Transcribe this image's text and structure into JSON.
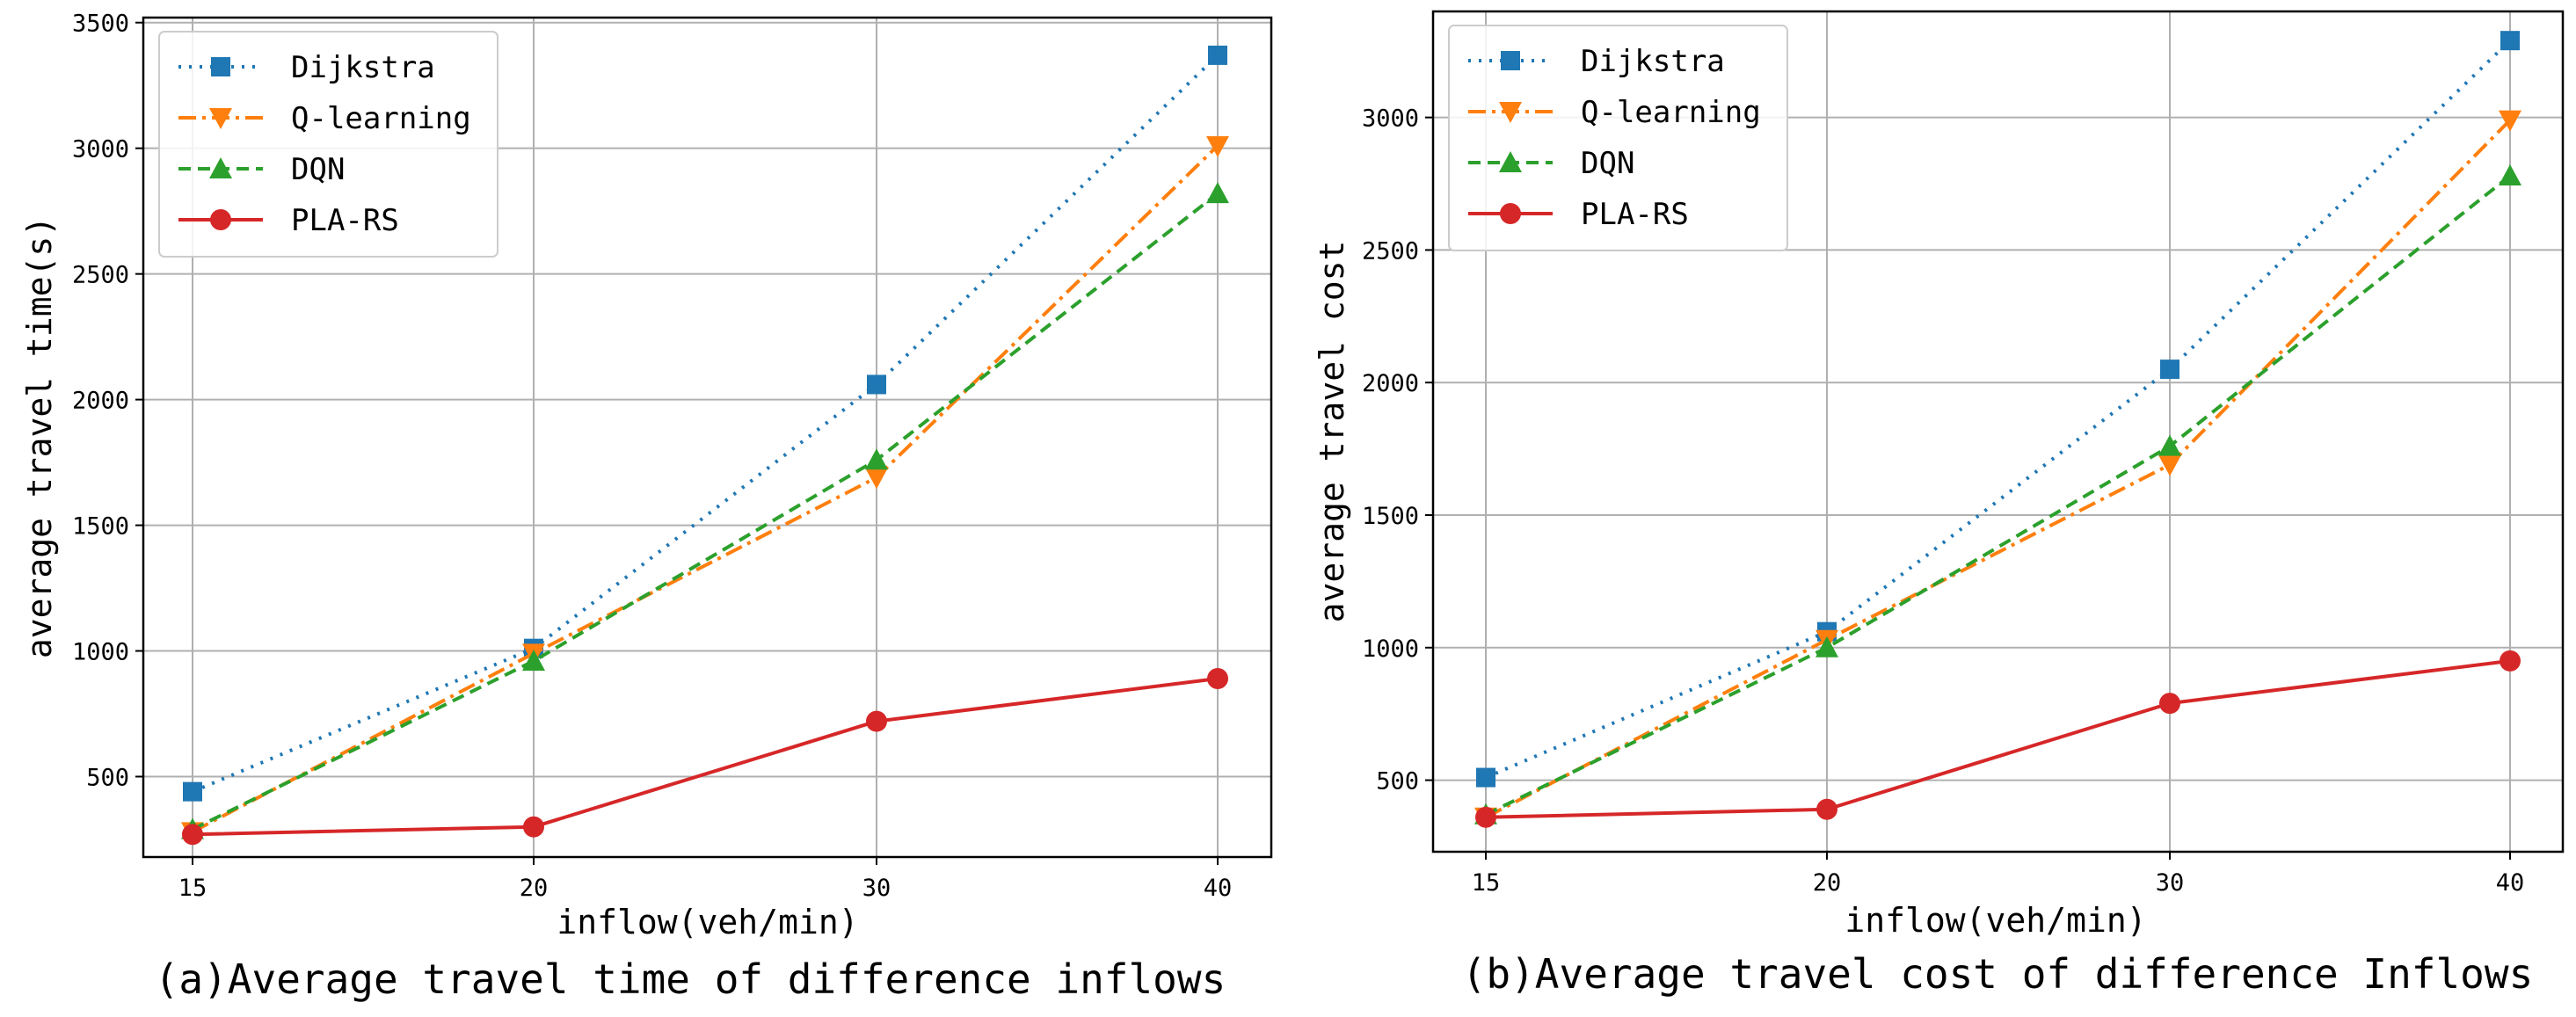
{
  "chart_data": [
    {
      "type": "line",
      "categories": [
        "15",
        "20",
        "30",
        "40"
      ],
      "xlabel": "inflow(veh/min)",
      "ylabel": "average travel time(s)",
      "caption": "(a)Average travel time of difference inflows",
      "ylim": [
        180,
        3520
      ],
      "yticks": [
        500,
        1000,
        1500,
        2000,
        2500,
        3000,
        3500
      ],
      "grid": true,
      "legend_position": "top-left",
      "series": [
        {
          "name": "Dijkstra",
          "values": [
            440,
            1010,
            2060,
            3370
          ],
          "color": "#1f77b4",
          "dash": "dotted",
          "marker": "square"
        },
        {
          "name": "Q-learning",
          "values": [
            280,
            990,
            1690,
            3010
          ],
          "color": "#ff7f0e",
          "dash": "dashdot",
          "marker": "triangle-down"
        },
        {
          "name": "DQN",
          "values": [
            290,
            960,
            1760,
            2820
          ],
          "color": "#2ca02c",
          "dash": "dashed",
          "marker": "triangle-up"
        },
        {
          "name": "PLA-RS",
          "values": [
            270,
            300,
            720,
            890
          ],
          "color": "#d62728",
          "dash": "solid",
          "marker": "circle"
        }
      ]
    },
    {
      "type": "line",
      "categories": [
        "15",
        "20",
        "30",
        "40"
      ],
      "xlabel": "inflow(veh/min)",
      "ylabel": "average travel cost",
      "caption": "(b)Average travel cost of difference Inflows",
      "ylim": [
        230,
        3400
      ],
      "yticks": [
        500,
        1000,
        1500,
        2000,
        2500,
        3000
      ],
      "grid": true,
      "legend_position": "top-left",
      "series": [
        {
          "name": "Dijkstra",
          "values": [
            510,
            1060,
            2050,
            3290
          ],
          "color": "#1f77b4",
          "dash": "dotted",
          "marker": "square"
        },
        {
          "name": "Q-learning",
          "values": [
            360,
            1030,
            1690,
            2990
          ],
          "color": "#ff7f0e",
          "dash": "dashdot",
          "marker": "triangle-down"
        },
        {
          "name": "DQN",
          "values": [
            370,
            1000,
            1760,
            2780
          ],
          "color": "#2ca02c",
          "dash": "dashed",
          "marker": "triangle-up"
        },
        {
          "name": "PLA-RS",
          "values": [
            360,
            390,
            790,
            950
          ],
          "color": "#d62728",
          "dash": "solid",
          "marker": "circle"
        }
      ]
    }
  ]
}
